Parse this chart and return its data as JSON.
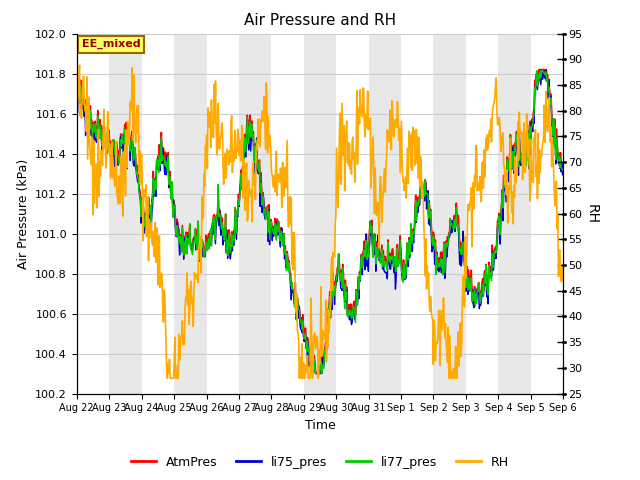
{
  "title": "Air Pressure and RH",
  "xlabel": "Time",
  "ylabel_left": "Air Pressure (kPa)",
  "ylabel_right": "RH",
  "annotation": "EE_mixed",
  "ylim_left": [
    100.2,
    102.0
  ],
  "ylim_right": [
    25,
    95
  ],
  "yticks_left": [
    100.2,
    100.4,
    100.6,
    100.8,
    101.0,
    101.2,
    101.4,
    101.6,
    101.8,
    102.0
  ],
  "yticks_right": [
    25,
    30,
    35,
    40,
    45,
    50,
    55,
    60,
    65,
    70,
    75,
    80,
    85,
    90,
    95
  ],
  "xtick_labels": [
    "Aug 22",
    "Aug 23",
    "Aug 24",
    "Aug 25",
    "Aug 26",
    "Aug 27",
    "Aug 28",
    "Aug 29",
    "Aug 30",
    "Aug 31",
    "Sep 1",
    "Sep 2",
    "Sep 3",
    "Sep 4",
    "Sep 5",
    "Sep 6"
  ],
  "colors": {
    "AtmPres": "#ff0000",
    "li75_pres": "#0000cc",
    "li77_pres": "#00cc00",
    "RH": "#ffaa00"
  },
  "legend_labels": [
    "AtmPres",
    "li75_pres",
    "li77_pres",
    "RH"
  ],
  "background_color": "#ffffff",
  "plot_bg_white": "#ffffff",
  "plot_bg_gray": "#e8e8e8",
  "n_days": 15,
  "seed": 42
}
